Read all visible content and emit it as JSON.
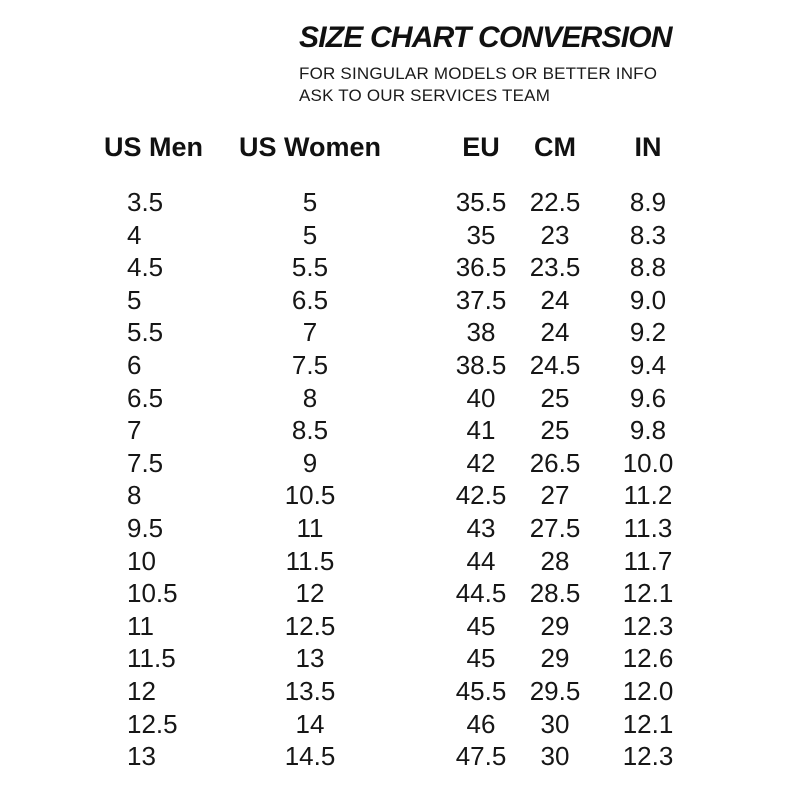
{
  "page": {
    "background_color": "#ffffff",
    "text_color": "#151515"
  },
  "header": {
    "title": "SIZE CHART CONVERSION",
    "subtitle_line1": "FOR SINGULAR MODELS OR BETTER INFO",
    "subtitle_line2": "ASK TO OUR SERVICES TEAM"
  },
  "chart_data": {
    "type": "table",
    "title": "SIZE CHART CONVERSION",
    "columns": [
      "US Men",
      "US Women",
      "EU",
      "CM",
      "IN"
    ],
    "rows": [
      [
        "3.5",
        "5",
        "35.5",
        "22.5",
        "8.9"
      ],
      [
        "4",
        "5",
        "35",
        "23",
        "8.3"
      ],
      [
        "4.5",
        "5.5",
        "36.5",
        "23.5",
        "8.8"
      ],
      [
        "5",
        "6.5",
        "37.5",
        "24",
        "9.0"
      ],
      [
        "5.5",
        "7",
        "38",
        "24",
        "9.2"
      ],
      [
        "6",
        "7.5",
        "38.5",
        "24.5",
        "9.4"
      ],
      [
        "6.5",
        "8",
        "40",
        "25",
        "9.6"
      ],
      [
        "7",
        "8.5",
        "41",
        "25",
        "9.8"
      ],
      [
        "7.5",
        "9",
        "42",
        "26.5",
        "10.0"
      ],
      [
        "8",
        "10.5",
        "42.5",
        "27",
        "11.2"
      ],
      [
        "9.5",
        "11",
        "43",
        "27.5",
        "11.3"
      ],
      [
        "10",
        "11.5",
        "44",
        "28",
        "11.7"
      ],
      [
        "10.5",
        "12",
        "44.5",
        "28.5",
        "12.1"
      ],
      [
        "11",
        "12.5",
        "45",
        "29",
        "12.3"
      ],
      [
        "11.5",
        "13",
        "45",
        "29",
        "12.6"
      ],
      [
        "12",
        "13.5",
        "45.5",
        "29.5",
        "12.0"
      ],
      [
        "12.5",
        "14",
        "46",
        "30",
        "12.1"
      ],
      [
        "13",
        "14.5",
        "47.5",
        "30",
        "12.3"
      ]
    ]
  }
}
